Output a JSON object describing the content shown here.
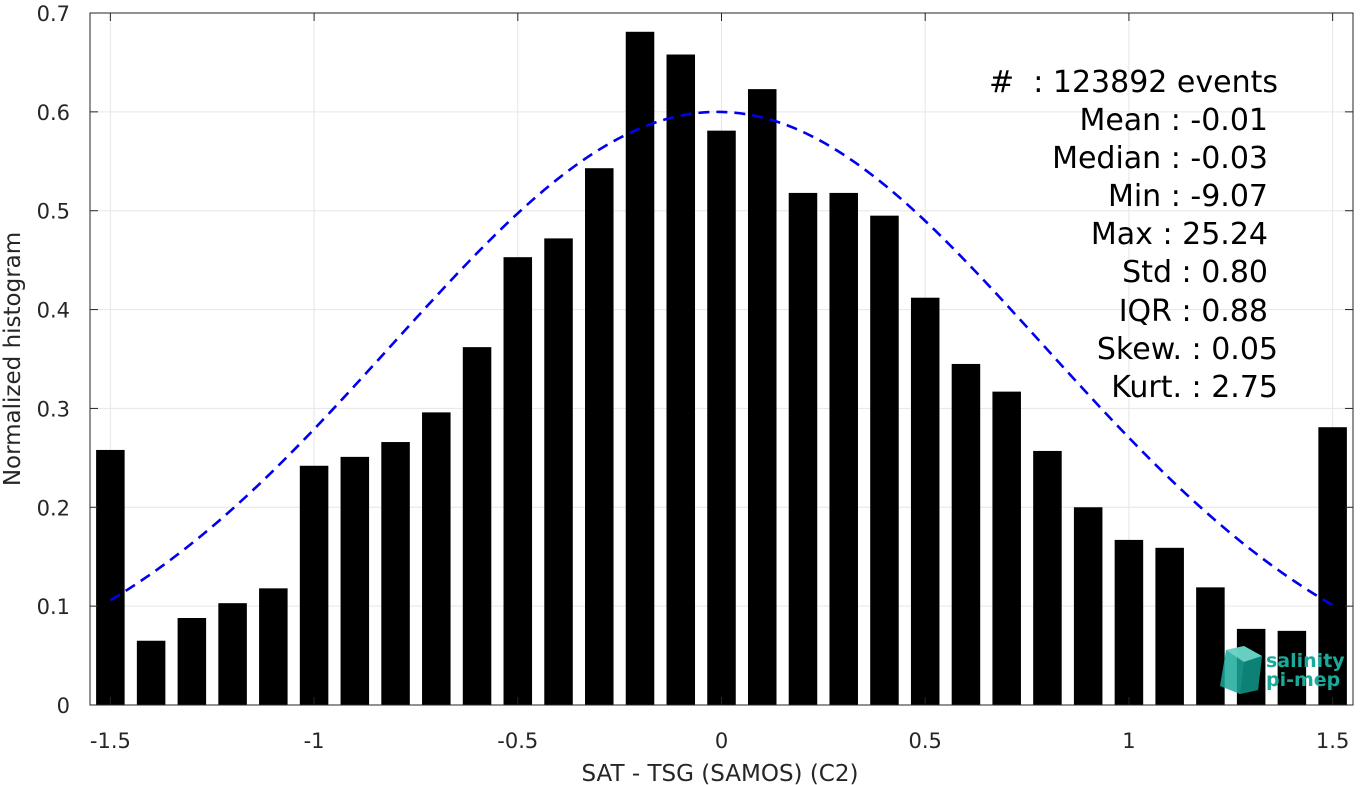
{
  "chart_data": {
    "type": "bar",
    "xlabel": "SAT - TSG (SAMOS) (C2)",
    "ylabel": "Normalized histogram",
    "xlim": [
      -1.55,
      1.55
    ],
    "ylim": [
      0,
      0.7
    ],
    "x_ticks": [
      -1.5,
      -1,
      -0.5,
      0,
      0.5,
      1,
      1.5
    ],
    "x_tick_labels": [
      "-1.5",
      "-1",
      "-0.5",
      "0",
      "0.5",
      "1",
      "1.5"
    ],
    "y_ticks": [
      0,
      0.1,
      0.2,
      0.3,
      0.4,
      0.5,
      0.6,
      0.7
    ],
    "y_tick_labels": [
      "0",
      "0.1",
      "0.2",
      "0.3",
      "0.4",
      "0.5",
      "0.6",
      "0.7"
    ],
    "grid": true,
    "bar_color": "#000000",
    "series": [
      {
        "x": [
          -1.5,
          -1.4,
          -1.3,
          -1.2,
          -1.1,
          -1.0,
          -0.9,
          -0.8,
          -0.7,
          -0.6,
          -0.5,
          -0.4,
          -0.3,
          -0.2,
          -0.1,
          0.0,
          0.1,
          0.2,
          0.3,
          0.4,
          0.5,
          0.6,
          0.7,
          0.8,
          0.9,
          1.0,
          1.1,
          1.2,
          1.3,
          1.4,
          1.5
        ],
        "values": [
          0.258,
          0.065,
          0.088,
          0.103,
          0.118,
          0.242,
          0.251,
          0.266,
          0.296,
          0.362,
          0.453,
          0.472,
          0.543,
          0.681,
          0.658,
          0.581,
          0.623,
          0.518,
          0.518,
          0.495,
          0.412,
          0.345,
          0.317,
          0.257,
          0.2,
          0.167,
          0.159,
          0.119,
          0.077,
          0.075,
          0.281
        ]
      }
    ],
    "fit_curve": {
      "style": "dashed",
      "color": "#0000ee",
      "mean": -0.01,
      "std": 0.8,
      "peak": 0.6,
      "x_range": [
        -1.5,
        1.5
      ]
    },
    "annotations": [
      "#  : 123892 events",
      "Mean : -0.01",
      "Median : -0.03",
      "Min : -9.07",
      "Max : 25.24",
      "Std : 0.80",
      "IQR : 0.88",
      "Skew. : 0.05",
      "Kurt. : 2.75"
    ]
  },
  "logo": {
    "line1": "salinity",
    "line2": "pi-mep",
    "color": "#1aa99a"
  }
}
